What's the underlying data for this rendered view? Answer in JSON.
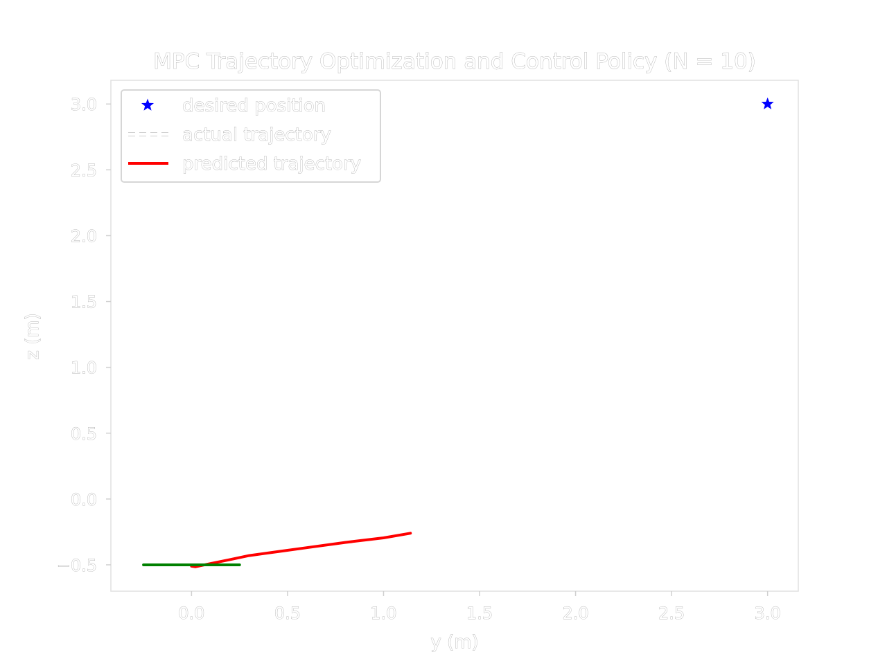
{
  "chart_data": {
    "type": "line",
    "title": "MPC Trajectory Optimization and Control Policy (N = 10)",
    "xlabel": "y (m)",
    "ylabel": "z (m)",
    "xlim": [
      -0.42,
      3.16
    ],
    "ylim": [
      -0.7,
      3.18
    ],
    "xticks": [
      0.0,
      0.5,
      1.0,
      1.5,
      2.0,
      2.5,
      3.0
    ],
    "yticks": [
      -0.5,
      0.0,
      0.5,
      1.0,
      1.5,
      2.0,
      2.5,
      3.0
    ],
    "xtick_labels": [
      "0.0",
      "0.5",
      "1.0",
      "1.5",
      "2.0",
      "2.5",
      "3.0"
    ],
    "ytick_labels": [
      "−0.5",
      "0.0",
      "0.5",
      "1.0",
      "1.5",
      "2.0",
      "2.5",
      "3.0"
    ],
    "grid": false,
    "legend_position": "top-left",
    "legend": [
      {
        "label": "desired position",
        "style": "star-marker",
        "color": "#0000ff"
      },
      {
        "label": "actual trajectory",
        "style": "dashed",
        "color": "#ffffff"
      },
      {
        "label": "predicted trajectory",
        "style": "solid",
        "color": "#ff0000"
      }
    ],
    "series": [
      {
        "name": "desired position",
        "kind": "scatter",
        "marker": "star",
        "color": "#0000ff",
        "x": [
          3.0
        ],
        "y": [
          3.0
        ]
      },
      {
        "name": "actual trajectory",
        "kind": "line",
        "dash": true,
        "color": "#ffffff",
        "x": [
          0.0
        ],
        "y": [
          -0.5
        ]
      },
      {
        "name": "predicted trajectory",
        "kind": "line",
        "color": "#ff0000",
        "x": [
          0.0,
          0.02,
          0.1,
          0.2,
          0.3,
          0.45,
          0.6,
          0.8,
          1.0,
          1.14
        ],
        "y": [
          -0.51,
          -0.515,
          -0.49,
          -0.46,
          -0.43,
          -0.4,
          -0.37,
          -0.33,
          -0.295,
          -0.26
        ]
      },
      {
        "kind": "line",
        "color": "#008000",
        "x": [
          -0.25,
          0.25
        ],
        "y": [
          -0.5,
          -0.5
        ]
      }
    ]
  }
}
